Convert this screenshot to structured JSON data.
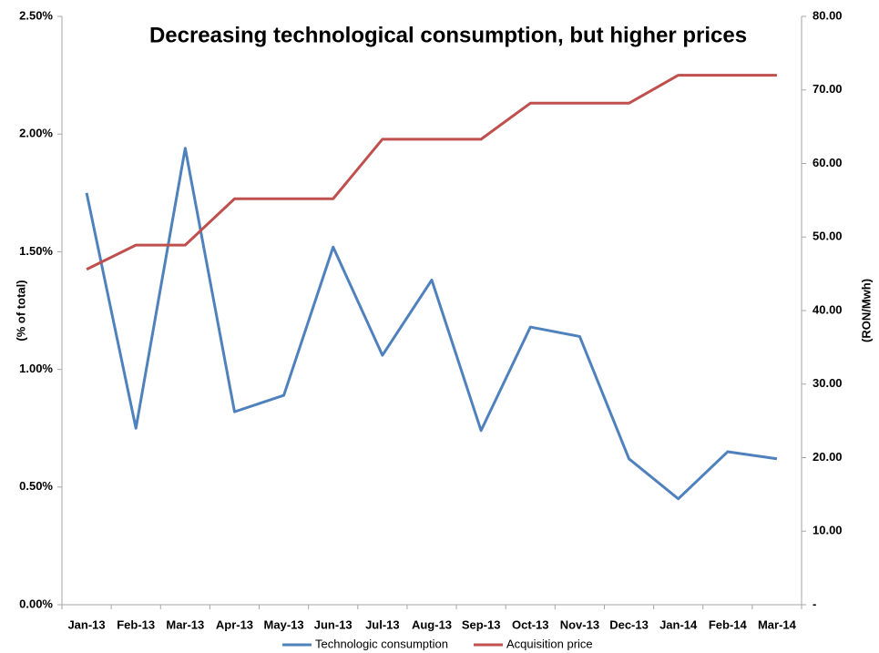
{
  "chart_data": {
    "type": "line",
    "title": "Decreasing technological consumption, but higher prices",
    "ylabel": "(% of total)",
    "y2label": "(RON/Mwh)",
    "categories": [
      "Jan-13",
      "Feb-13",
      "Mar-13",
      "Apr-13",
      "May-13",
      "Jun-13",
      "Jul-13",
      "Aug-13",
      "Sep-13",
      "Oct-13",
      "Nov-13",
      "Dec-13",
      "Jan-14",
      "Feb-14",
      "Mar-14"
    ],
    "series": [
      {
        "name": "Technologic consumption",
        "color": "#4f81bd",
        "values": [
          1.75,
          0.75,
          1.94,
          0.82,
          0.89,
          1.52,
          1.06,
          1.38,
          0.74,
          1.18,
          1.14,
          0.62,
          0.45,
          0.65,
          0.62
        ]
      },
      {
        "name": "Acquisition price",
        "color": "#c0504d",
        "axis": "y2",
        "values": [
          45.6,
          48.9,
          48.9,
          55.2,
          55.2,
          55.2,
          63.3,
          63.3,
          63.3,
          68.2,
          68.2,
          68.2,
          72.0,
          72.0,
          72.0
        ]
      }
    ],
    "ylim": [
      0,
      2.5
    ],
    "yticks": [
      {
        "value": 0,
        "label": "0.00%"
      },
      {
        "value": 0.5,
        "label": "0.50%"
      },
      {
        "value": 1,
        "label": "1.00%"
      },
      {
        "value": 1.5,
        "label": "1.50%"
      },
      {
        "value": 2,
        "label": "2.00%"
      },
      {
        "value": 2.5,
        "label": "2.50%"
      }
    ],
    "y2lim": [
      0,
      80
    ],
    "y2ticks": [
      {
        "value": 0,
        "label": "-"
      },
      {
        "value": 10,
        "label": "10.00"
      },
      {
        "value": 20,
        "label": "20.00"
      },
      {
        "value": 30,
        "label": "30.00"
      },
      {
        "value": 40,
        "label": "40.00"
      },
      {
        "value": 50,
        "label": "50.00"
      },
      {
        "value": 60,
        "label": "60.00"
      },
      {
        "value": 70,
        "label": "70.00"
      },
      {
        "value": 80,
        "label": "80.00"
      }
    ],
    "legend": "bottom",
    "grid": false
  }
}
